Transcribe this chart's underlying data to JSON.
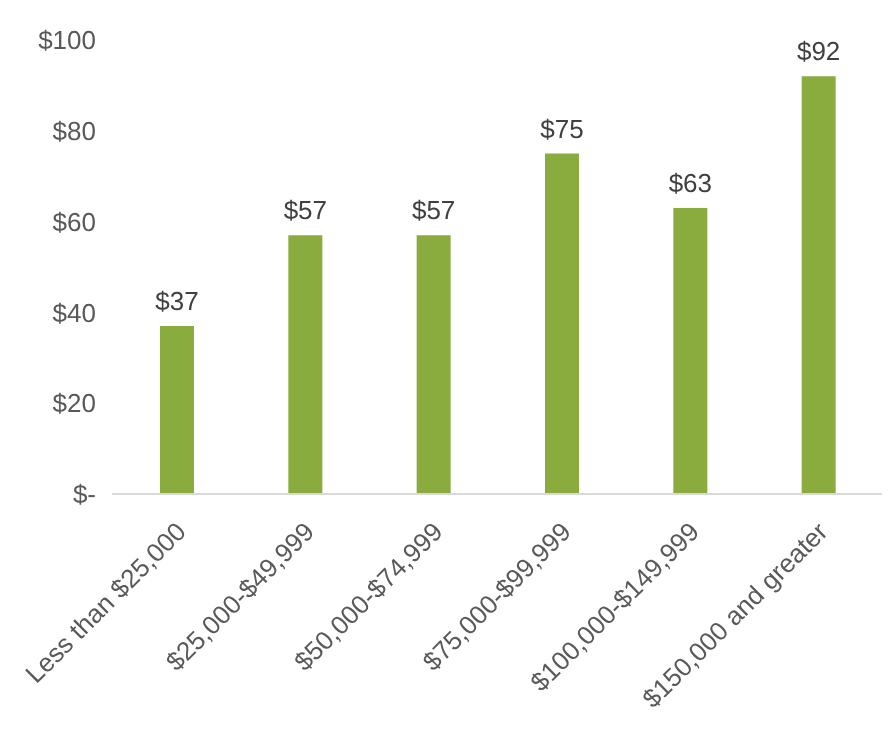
{
  "chart_data": {
    "type": "bar",
    "categories": [
      "Less than $25,000",
      "$25,000-$49,999",
      "$50,000-$74,999",
      "$75,000-$99,999",
      "$100,000-$149,999",
      "$150,000 and greater"
    ],
    "values": [
      37,
      57,
      57,
      75,
      63,
      92
    ],
    "value_labels": [
      "$37",
      "$57",
      "$57",
      "$75",
      "$63",
      "$92"
    ],
    "color": "#8aac3e",
    "ylim": [
      0,
      100
    ],
    "yticks": [
      {
        "value": 0,
        "label": "$-"
      },
      {
        "value": 20,
        "label": "$20"
      },
      {
        "value": 40,
        "label": "$40"
      },
      {
        "value": 60,
        "label": "$60"
      },
      {
        "value": 80,
        "label": "$80"
      },
      {
        "value": 100,
        "label": "$100"
      }
    ],
    "grid": false,
    "legend": false
  }
}
